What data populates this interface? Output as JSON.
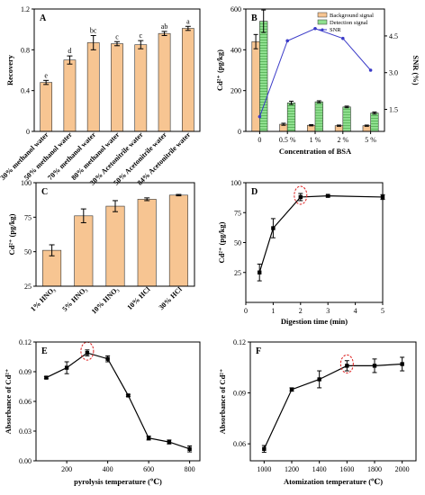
{
  "chart_data": [
    {
      "id": "A",
      "panel_label": "A",
      "type": "bar",
      "ylabel": "Recovery",
      "xlabel": "",
      "ylim": [
        0,
        1.2
      ],
      "yticks": [
        "0",
        "0.4",
        "0.8",
        "1.2"
      ],
      "categories": [
        "30% methanol water",
        "50% methanol water",
        "70% methanol water",
        "80% methanol water",
        "30% Acetonitrile water",
        "50% Acetonitrile water",
        "84% Acetonitrile water"
      ],
      "values": [
        0.48,
        0.7,
        0.87,
        0.86,
        0.85,
        0.96,
        1.01
      ],
      "errors": [
        0.02,
        0.04,
        0.07,
        0.02,
        0.04,
        0.02,
        0.02
      ],
      "letters": [
        "e",
        "d",
        "bc",
        "c",
        "c",
        "ab",
        "a"
      ],
      "color": "#f7c592"
    },
    {
      "id": "B",
      "panel_label": "B",
      "type": "bar",
      "xlabel": "Concentration of BSA",
      "ylabel": "Cd²⁺ (pg/kg)",
      "y2label": "SNR (%)",
      "ylim": [
        0,
        600
      ],
      "yticks": [
        "0",
        "200",
        "400",
        "600"
      ],
      "y2lim": [
        0.6,
        5.6
      ],
      "y2ticks": [
        "1.5",
        "3.0",
        "4.5"
      ],
      "categories": [
        "0",
        "0.5 %",
        "1 %",
        "2 %",
        "5 %"
      ],
      "series": [
        {
          "name": "Background signal",
          "values": [
            440,
            35,
            30,
            28,
            28
          ],
          "errors": [
            35,
            5,
            3,
            3,
            3
          ],
          "color": "#f7c592"
        },
        {
          "name": "Detection signal",
          "values": [
            540,
            140,
            145,
            120,
            90
          ],
          "errors": [
            55,
            8,
            5,
            4,
            5
          ],
          "color": "#8fe08f"
        }
      ],
      "line": {
        "name": "SNR",
        "values": [
          1.2,
          4.3,
          4.8,
          4.4,
          3.1
        ],
        "color": "#3b3bc8"
      }
    },
    {
      "id": "C",
      "panel_label": "C",
      "type": "bar",
      "ylabel": "Cd²⁺ (pg/kg)",
      "xlabel": "",
      "ylim": [
        25,
        100
      ],
      "yticks": [
        "25",
        "50",
        "75",
        "100"
      ],
      "categories": [
        "1% HNO₃",
        "5% HNO₃",
        "10% HNO₃",
        "10% HCl",
        "30% HCl"
      ],
      "values": [
        51,
        76,
        83,
        88,
        91
      ],
      "errors": [
        4,
        5,
        4,
        1,
        0.5
      ],
      "color": "#f7c592"
    },
    {
      "id": "D",
      "panel_label": "D",
      "type": "line",
      "xlabel": "Digestion time (min)",
      "ylabel": "Cd²⁺ (pg/kg)",
      "xlim": [
        0,
        5
      ],
      "xticks": [
        "0",
        "1",
        "2",
        "3",
        "4",
        "5"
      ],
      "ylim": [
        0,
        100
      ],
      "yticks": [
        "25",
        "50",
        "75",
        "100"
      ],
      "x": [
        0.5,
        1,
        2,
        3,
        5
      ],
      "y": [
        25,
        62,
        88,
        89,
        88
      ],
      "errors": [
        7,
        8,
        3,
        1,
        2
      ],
      "highlight_index": 2
    },
    {
      "id": "E",
      "panel_label": "E",
      "type": "line",
      "xlabel": "pyrolysis temperature (℃)",
      "ylabel": "Absorbance of Cd²⁺",
      "xlim": [
        50,
        850
      ],
      "xticks": [
        "200",
        "400",
        "600",
        "800"
      ],
      "ylim": [
        0.0,
        0.12
      ],
      "yticks": [
        "0.00",
        "0.03",
        "0.06",
        "0.09",
        "0.12"
      ],
      "x": [
        100,
        200,
        300,
        400,
        500,
        600,
        700,
        800
      ],
      "y": [
        0.084,
        0.094,
        0.109,
        0.103,
        0.066,
        0.023,
        0.019,
        0.012
      ],
      "errors": [
        0.001,
        0.006,
        0.003,
        0.003,
        0.001,
        0.002,
        0.002,
        0.003
      ],
      "highlight_index": 2
    },
    {
      "id": "F",
      "panel_label": "F",
      "type": "line",
      "xlabel": "Atomization temperature (℃)",
      "ylabel": "Absorbance of Cd²⁺",
      "xlim": [
        900,
        2100
      ],
      "xticks": [
        "1000",
        "1200",
        "1400",
        "1600",
        "1800",
        "2000"
      ],
      "ylim": [
        0.05,
        0.12
      ],
      "yticks": [
        "0.06",
        "0.09",
        "0.12"
      ],
      "x": [
        1000,
        1200,
        1400,
        1600,
        1800,
        2000
      ],
      "y": [
        0.057,
        0.092,
        0.098,
        0.106,
        0.106,
        0.107
      ],
      "errors": [
        0.002,
        0.001,
        0.005,
        0.003,
        0.004,
        0.004
      ],
      "highlight_index": 3
    }
  ]
}
